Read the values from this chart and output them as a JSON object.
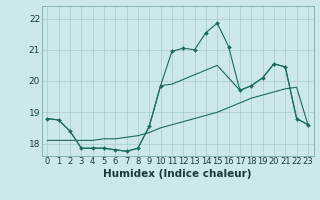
{
  "xlabel": "Humidex (Indice chaleur)",
  "background_color": "#cce8e8",
  "grid_color": "#aacccc",
  "line_color": "#1a6b5a",
  "xlim": [
    -0.5,
    23.5
  ],
  "ylim": [
    17.6,
    22.4
  ],
  "yticks": [
    18,
    19,
    20,
    21,
    22
  ],
  "xticks": [
    0,
    1,
    2,
    3,
    4,
    5,
    6,
    7,
    8,
    9,
    10,
    11,
    12,
    13,
    14,
    15,
    16,
    17,
    18,
    19,
    20,
    21,
    22,
    23
  ],
  "line1_x": [
    0,
    1,
    2,
    3,
    4,
    5,
    6,
    7,
    8,
    9,
    10,
    11,
    12,
    13,
    14,
    15,
    16,
    17,
    18,
    19,
    20,
    21,
    22,
    23
  ],
  "line1_y": [
    18.8,
    18.75,
    18.4,
    17.85,
    17.85,
    17.85,
    17.8,
    17.75,
    17.85,
    18.55,
    19.85,
    20.95,
    21.05,
    21.0,
    21.55,
    21.85,
    21.1,
    19.7,
    19.85,
    20.1,
    20.55,
    20.45,
    18.8,
    18.6
  ],
  "line2_x": [
    0,
    1,
    2,
    3,
    4,
    5,
    6,
    7,
    8,
    9,
    10,
    11,
    12,
    13,
    14,
    15,
    16,
    17,
    18,
    19,
    20,
    21,
    22,
    23
  ],
  "line2_y": [
    18.1,
    18.1,
    18.1,
    18.1,
    18.1,
    18.15,
    18.15,
    18.2,
    18.25,
    18.35,
    18.5,
    18.6,
    18.7,
    18.8,
    18.9,
    19.0,
    19.15,
    19.3,
    19.45,
    19.55,
    19.65,
    19.75,
    19.8,
    18.6
  ],
  "line3_x": [
    0,
    1,
    2,
    3,
    4,
    5,
    6,
    7,
    8,
    9,
    10,
    11,
    12,
    13,
    14,
    15,
    16,
    17,
    18,
    19,
    20,
    21,
    22,
    23
  ],
  "line3_y": [
    18.8,
    18.75,
    18.4,
    17.85,
    17.85,
    17.85,
    17.8,
    17.75,
    17.85,
    18.55,
    19.85,
    19.9,
    20.05,
    20.2,
    20.35,
    20.5,
    20.1,
    19.7,
    19.85,
    20.1,
    20.55,
    20.45,
    18.8,
    18.6
  ],
  "tick_fontsize": 6.0,
  "xlabel_fontsize": 7.5
}
